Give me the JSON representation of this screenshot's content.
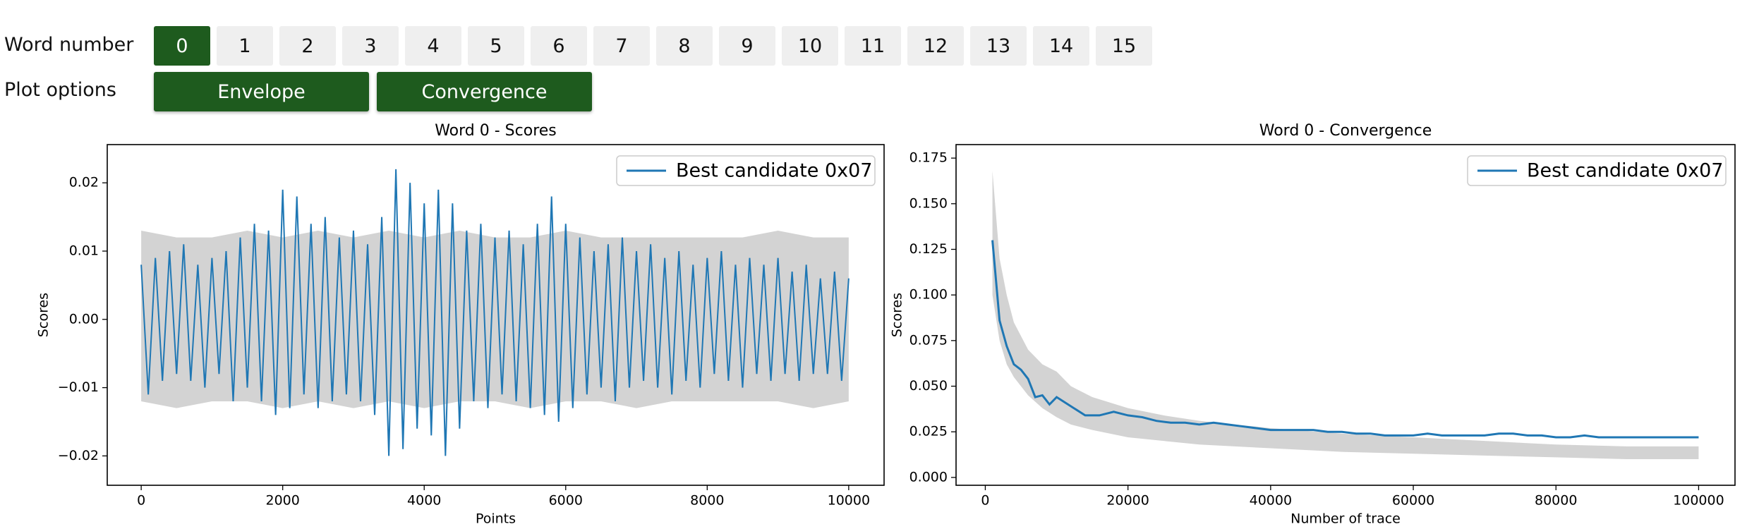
{
  "controls": {
    "word_label": "Word number",
    "words": [
      "0",
      "1",
      "2",
      "3",
      "4",
      "5",
      "6",
      "7",
      "8",
      "9",
      "10",
      "11",
      "12",
      "13",
      "14",
      "15"
    ],
    "selected_word": 0,
    "plot_label": "Plot options",
    "options": [
      "Envelope",
      "Convergence"
    ],
    "active_color": "#1e5b1e",
    "idle_color": "#efefef"
  },
  "chart_data": [
    {
      "type": "line",
      "title": "Word 0 - Scores",
      "x_label": "Points",
      "y_label": "Scores",
      "legend": "upper right",
      "xlim": [
        -480,
        10500
      ],
      "ylim": [
        -0.0243,
        0.0256
      ],
      "xticks": [
        0,
        2000,
        4000,
        6000,
        8000,
        10000
      ],
      "yticks": [
        {
          "value": -0.02,
          "label": "−0.02"
        },
        {
          "value": -0.01,
          "label": "−0.01"
        },
        {
          "value": 0,
          "label": "0.00"
        },
        {
          "value": 0.01,
          "label": "0.01"
        },
        {
          "value": 0.02,
          "label": "0.02"
        }
      ],
      "band": {
        "color": "#d3d3d3",
        "x": [
          0,
          500,
          1000,
          1500,
          2000,
          2500,
          3000,
          3500,
          4000,
          4500,
          5000,
          5500,
          6000,
          6500,
          7000,
          7500,
          8000,
          8500,
          9000,
          9500,
          10000
        ],
        "upper": [
          0.013,
          0.012,
          0.012,
          0.013,
          0.012,
          0.013,
          0.012,
          0.013,
          0.012,
          0.013,
          0.012,
          0.012,
          0.013,
          0.012,
          0.012,
          0.012,
          0.012,
          0.012,
          0.013,
          0.012,
          0.012
        ],
        "lower": [
          -0.012,
          -0.013,
          -0.012,
          -0.012,
          -0.013,
          -0.012,
          -0.013,
          -0.012,
          -0.013,
          -0.012,
          -0.012,
          -0.013,
          -0.012,
          -0.012,
          -0.013,
          -0.012,
          -0.012,
          -0.012,
          -0.012,
          -0.013,
          -0.012
        ]
      },
      "series": [
        {
          "name": "Best candidate 0x07",
          "color": "#1f77b4",
          "x": [
            0,
            100,
            200,
            300,
            400,
            500,
            600,
            700,
            800,
            900,
            1000,
            1100,
            1200,
            1300,
            1400,
            1500,
            1600,
            1700,
            1800,
            1900,
            2000,
            2100,
            2200,
            2300,
            2400,
            2500,
            2600,
            2700,
            2800,
            2900,
            3000,
            3100,
            3200,
            3300,
            3400,
            3500,
            3600,
            3700,
            3800,
            3900,
            4000,
            4100,
            4200,
            4300,
            4400,
            4500,
            4600,
            4700,
            4800,
            4900,
            5000,
            5100,
            5200,
            5300,
            5400,
            5500,
            5600,
            5700,
            5800,
            5900,
            6000,
            6100,
            6200,
            6300,
            6400,
            6500,
            6600,
            6700,
            6800,
            6900,
            7000,
            7100,
            7200,
            7300,
            7400,
            7500,
            7600,
            7700,
            7800,
            7900,
            8000,
            8100,
            8200,
            8300,
            8400,
            8500,
            8600,
            8700,
            8800,
            8900,
            9000,
            9100,
            9200,
            9300,
            9400,
            9500,
            9600,
            9700,
            9800,
            9900,
            10000
          ],
          "values": [
            0.008,
            -0.011,
            0.009,
            -0.009,
            0.01,
            -0.008,
            0.011,
            -0.009,
            0.008,
            -0.01,
            0.009,
            -0.008,
            0.01,
            -0.012,
            0.012,
            -0.01,
            0.014,
            -0.012,
            0.013,
            -0.014,
            0.019,
            -0.013,
            0.018,
            -0.011,
            0.014,
            -0.013,
            0.015,
            -0.012,
            0.012,
            -0.011,
            0.013,
            -0.012,
            0.011,
            -0.014,
            0.015,
            -0.02,
            0.022,
            -0.019,
            0.02,
            -0.016,
            0.017,
            -0.017,
            0.019,
            -0.02,
            0.017,
            -0.016,
            0.013,
            -0.012,
            0.014,
            -0.013,
            0.012,
            -0.011,
            0.013,
            -0.012,
            0.011,
            -0.013,
            0.014,
            -0.014,
            0.018,
            -0.015,
            0.014,
            -0.013,
            0.012,
            -0.011,
            0.01,
            -0.01,
            0.011,
            -0.012,
            0.012,
            -0.01,
            0.01,
            -0.009,
            0.011,
            -0.01,
            0.009,
            -0.011,
            0.01,
            -0.009,
            0.008,
            -0.01,
            0.009,
            -0.008,
            0.01,
            -0.009,
            0.008,
            -0.01,
            0.009,
            -0.008,
            0.008,
            -0.009,
            0.009,
            -0.008,
            0.007,
            -0.009,
            0.008,
            -0.008,
            0.006,
            -0.008,
            0.007,
            -0.009,
            0.006
          ]
        }
      ]
    },
    {
      "type": "line",
      "title": "Word 0 - Convergence",
      "x_label": "Number of trace",
      "y_label": "Scores",
      "legend": "upper right",
      "xlim": [
        -4100,
        105100
      ],
      "ylim": [
        -0.0043,
        0.1824
      ],
      "xticks": [
        0,
        20000,
        40000,
        60000,
        80000,
        100000
      ],
      "yticks": [
        {
          "value": 0,
          "label": "0.000"
        },
        {
          "value": 0.025,
          "label": "0.025"
        },
        {
          "value": 0.05,
          "label": "0.050"
        },
        {
          "value": 0.075,
          "label": "0.075"
        },
        {
          "value": 0.1,
          "label": "0.100"
        },
        {
          "value": 0.125,
          "label": "0.125"
        },
        {
          "value": 0.15,
          "label": "0.150"
        },
        {
          "value": 0.175,
          "label": "0.175"
        }
      ],
      "band": {
        "color": "#d3d3d3",
        "x": [
          1000,
          2000,
          3000,
          4000,
          6000,
          8000,
          10000,
          12000,
          15000,
          20000,
          25000,
          30000,
          40000,
          50000,
          60000,
          70000,
          80000,
          90000,
          100000
        ],
        "upper": [
          0.168,
          0.12,
          0.1,
          0.085,
          0.07,
          0.062,
          0.058,
          0.05,
          0.044,
          0.038,
          0.034,
          0.031,
          0.027,
          0.024,
          0.022,
          0.02,
          0.018,
          0.017,
          0.017
        ],
        "lower": [
          0.1,
          0.075,
          0.062,
          0.055,
          0.045,
          0.038,
          0.033,
          0.029,
          0.026,
          0.022,
          0.02,
          0.018,
          0.016,
          0.014,
          0.013,
          0.012,
          0.011,
          0.01,
          0.01
        ]
      },
      "series": [
        {
          "name": "Best candidate 0x07",
          "color": "#1f77b4",
          "x": [
            1000,
            2000,
            3000,
            4000,
            5000,
            6000,
            7000,
            8000,
            9000,
            10000,
            12000,
            14000,
            16000,
            18000,
            20000,
            22000,
            24000,
            26000,
            28000,
            30000,
            32000,
            34000,
            36000,
            38000,
            40000,
            42000,
            44000,
            46000,
            48000,
            50000,
            52000,
            54000,
            56000,
            58000,
            60000,
            62000,
            64000,
            66000,
            68000,
            70000,
            72000,
            74000,
            76000,
            78000,
            80000,
            82000,
            84000,
            86000,
            88000,
            90000,
            92000,
            94000,
            96000,
            98000,
            100000
          ],
          "values": [
            0.13,
            0.086,
            0.072,
            0.062,
            0.059,
            0.054,
            0.044,
            0.045,
            0.04,
            0.044,
            0.039,
            0.034,
            0.034,
            0.036,
            0.034,
            0.033,
            0.031,
            0.03,
            0.03,
            0.029,
            0.03,
            0.029,
            0.028,
            0.027,
            0.026,
            0.026,
            0.026,
            0.026,
            0.025,
            0.025,
            0.024,
            0.024,
            0.023,
            0.023,
            0.023,
            0.024,
            0.023,
            0.023,
            0.023,
            0.023,
            0.024,
            0.024,
            0.023,
            0.023,
            0.022,
            0.022,
            0.023,
            0.022,
            0.022,
            0.022,
            0.022,
            0.022,
            0.022,
            0.022,
            0.022
          ]
        }
      ]
    }
  ]
}
